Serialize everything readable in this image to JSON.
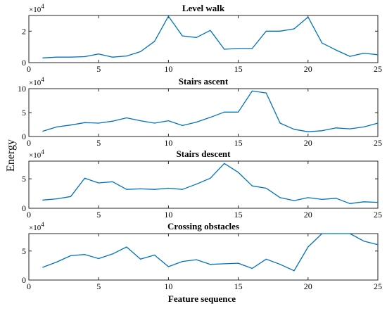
{
  "figure": {
    "ylabel": "Energy",
    "xlabel": "Feature sequence",
    "line_color": "#0072BD"
  },
  "chart_data": [
    {
      "type": "line",
      "title": "Level walk",
      "exponent_label": "×10",
      "exponent_power": "4",
      "xlim": [
        0,
        25
      ],
      "ylim": [
        0,
        3
      ],
      "xticks": [
        0,
        5,
        10,
        15,
        20,
        25
      ],
      "yticks": [
        0,
        2
      ],
      "x": [
        1,
        2,
        3,
        4,
        5,
        6,
        7,
        8,
        9,
        10,
        11,
        12,
        13,
        14,
        15,
        16,
        17,
        18,
        19,
        20,
        21,
        22,
        23,
        24,
        25
      ],
      "values": [
        0.3,
        0.35,
        0.35,
        0.38,
        0.55,
        0.35,
        0.42,
        0.7,
        1.35,
        2.95,
        1.7,
        1.6,
        2.05,
        0.85,
        0.9,
        0.9,
        2.0,
        2.0,
        2.15,
        2.9,
        1.25,
        0.8,
        0.4,
        0.6,
        0.5
      ]
    },
    {
      "type": "line",
      "title": "Stairs ascent",
      "exponent_label": "×10",
      "exponent_power": "4",
      "xlim": [
        0,
        25
      ],
      "ylim": [
        0,
        10
      ],
      "xticks": [
        0,
        5,
        10,
        15,
        20,
        25
      ],
      "yticks": [
        0,
        5,
        10
      ],
      "x": [
        1,
        2,
        3,
        4,
        5,
        6,
        7,
        8,
        9,
        10,
        11,
        12,
        13,
        14,
        15,
        16,
        17,
        18,
        19,
        20,
        21,
        22,
        23,
        24,
        25
      ],
      "values": [
        1.1,
        2.0,
        2.4,
        2.9,
        2.8,
        3.2,
        3.9,
        3.3,
        2.8,
        3.3,
        2.3,
        3.0,
        4.0,
        5.1,
        5.1,
        9.5,
        9.1,
        2.8,
        1.5,
        1.0,
        1.2,
        1.8,
        1.6,
        2.0,
        2.8
      ]
    },
    {
      "type": "line",
      "title": "Stairs descent",
      "exponent_label": "×10",
      "exponent_power": "4",
      "xlim": [
        0,
        25
      ],
      "ylim": [
        0,
        8
      ],
      "xticks": [
        0,
        5,
        10,
        15,
        20,
        25
      ],
      "yticks": [
        0,
        5
      ],
      "x": [
        1,
        2,
        3,
        4,
        5,
        6,
        7,
        8,
        9,
        10,
        11,
        12,
        13,
        14,
        15,
        16,
        17,
        18,
        19,
        20,
        21,
        22,
        23,
        24,
        25
      ],
      "values": [
        1.4,
        1.6,
        2.0,
        5.1,
        4.3,
        4.5,
        3.2,
        3.3,
        3.2,
        3.4,
        3.2,
        4.1,
        5.1,
        7.6,
        6.1,
        3.8,
        3.4,
        1.8,
        1.3,
        1.8,
        1.5,
        1.7,
        0.8,
        1.1,
        1.0
      ]
    },
    {
      "type": "line",
      "title": "Crossing obstacles",
      "exponent_label": "×10",
      "exponent_power": "4",
      "xlim": [
        0,
        25
      ],
      "ylim": [
        0,
        8
      ],
      "xticks": [
        0,
        5,
        10,
        15,
        20,
        25
      ],
      "yticks": [
        0,
        5
      ],
      "x": [
        1,
        2,
        3,
        4,
        5,
        6,
        7,
        8,
        9,
        10,
        11,
        12,
        13,
        14,
        15,
        16,
        17,
        18,
        19,
        20,
        21,
        22,
        23,
        24,
        25
      ],
      "values": [
        2.2,
        3.1,
        4.2,
        4.4,
        3.7,
        4.5,
        5.7,
        3.6,
        4.3,
        2.3,
        3.2,
        3.5,
        2.7,
        2.8,
        2.9,
        2.0,
        3.6,
        2.7,
        1.6,
        5.7,
        8.0,
        8.0,
        8.0,
        6.7,
        6.1
      ]
    }
  ]
}
